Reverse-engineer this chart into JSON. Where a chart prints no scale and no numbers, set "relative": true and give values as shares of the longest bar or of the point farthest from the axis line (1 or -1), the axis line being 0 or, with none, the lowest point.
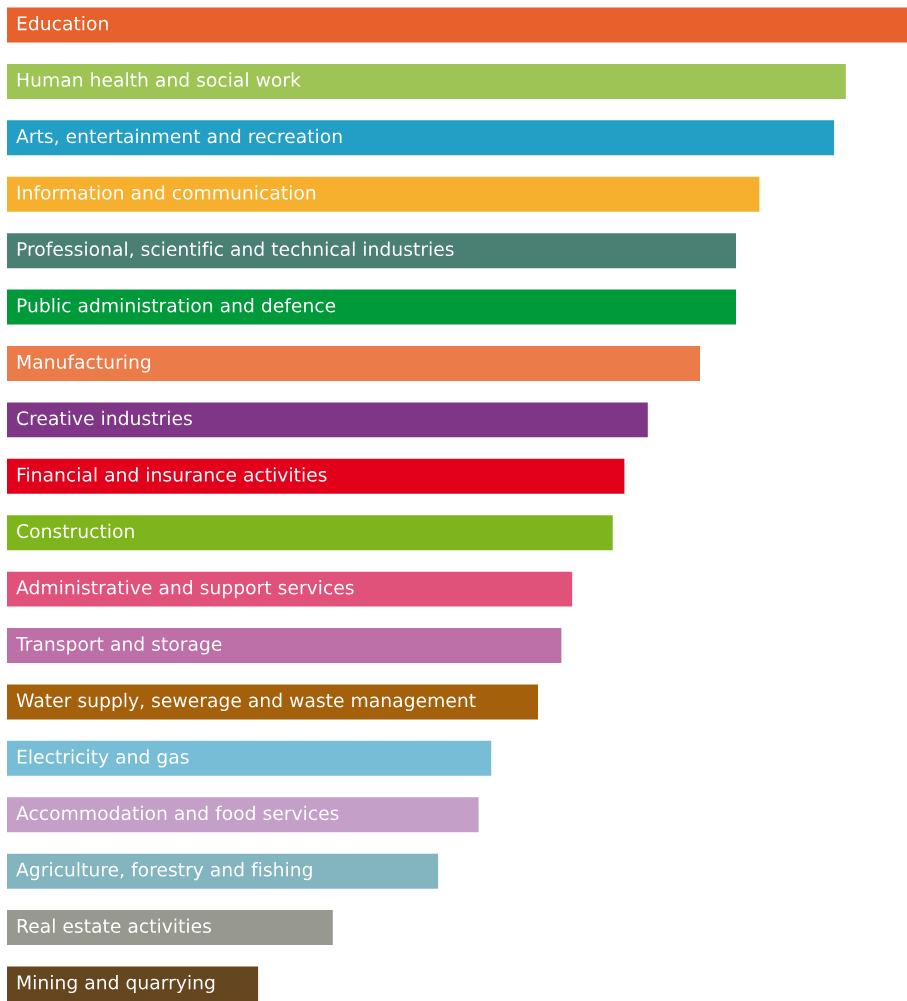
{
  "chart_data": {
    "type": "bar",
    "orientation": "horizontal",
    "relative": true,
    "categories": [
      "Education",
      "Human health and social work",
      "Arts, entertainment and recreation",
      "Information and communication",
      "Professional, scientific and technical industries",
      "Public administration and defence",
      "Manufacturing",
      "Creative industries",
      "Financial and insurance activities",
      "Construction",
      "Administrative and support services",
      "Transport and storage",
      "Water supply, sewerage and waste management",
      "Electricity and gas",
      "Accommodation and food services",
      "Agriculture, forestry and fishing",
      "Real estate activities",
      "Mining and quarrying"
    ],
    "values": [
      1,
      0.932,
      0.919,
      0.836,
      0.81,
      0.81,
      0.77,
      0.712,
      0.686,
      0.673,
      0.628,
      0.616,
      0.59,
      0.538,
      0.524,
      0.479,
      0.362,
      0.279
    ],
    "colors": [
      "#e8612c",
      "#9dc454",
      "#239fc6",
      "#f6b02e",
      "#4a7f74",
      "#009a3a",
      "#ec7b4a",
      "#7f3686",
      "#e2001a",
      "#7eb51d",
      "#e0527a",
      "#bd6fa8",
      "#a5600b",
      "#78bdd6",
      "#c4a0c8",
      "#82b5bf",
      "#979890",
      "#65461f"
    ]
  }
}
